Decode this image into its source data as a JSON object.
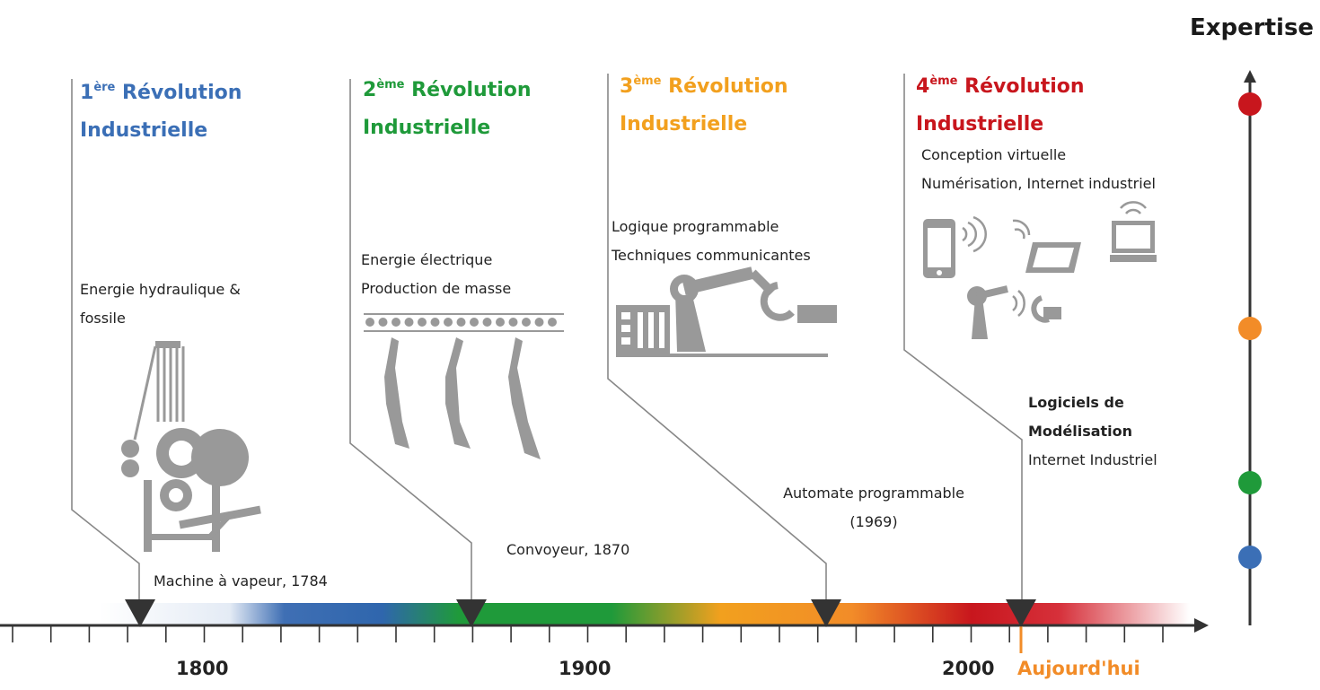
{
  "expertise_label": "Expertise",
  "revolutions": [
    {
      "ordinal": "1",
      "suffix": "ère",
      "title_word": "Révolution",
      "title_line2": "Industrielle",
      "color": "#3b6fb6",
      "description": [
        "Energie hydraulique &",
        "fossile"
      ],
      "milestone": "Machine à vapeur, 1784",
      "year": 1784,
      "icon": "steam-engine-icon"
    },
    {
      "ordinal": "2",
      "suffix": "ème",
      "title_word": "Révolution",
      "title_line2": "Industrielle",
      "color": "#1f9a3a",
      "description": [
        "Energie électrique",
        "Production de masse"
      ],
      "milestone": "Convoyeur, 1870",
      "year": 1870,
      "icon": "conveyor-icon"
    },
    {
      "ordinal": "3",
      "suffix": "ème",
      "title_word": "Révolution",
      "title_line2": "Industrielle",
      "color": "#f2a01e",
      "description": [
        "Logique programmable",
        "Techniques communicantes"
      ],
      "milestone": [
        "Automate programmable",
        "(1969)"
      ],
      "year": 1969,
      "icon": "robot-arm-icon"
    },
    {
      "ordinal": "4",
      "suffix": "ème",
      "title_word": "Révolution",
      "title_line2": "Industrielle",
      "color": "#c8161d",
      "description": [
        "Conception virtuelle",
        "Numérisation, Internet industriel"
      ],
      "milestone": [
        "Logiciels de",
        "Modélisation",
        "Internet Industriel"
      ],
      "year": 2020,
      "icon": "connected-devices-icon"
    }
  ],
  "axis": {
    "ticks": [
      "1800",
      "1900",
      "2000"
    ],
    "today_label": "Aujourd'hui",
    "today_color": "#f28c28"
  },
  "expertise_levels": [
    {
      "color": "#c8161d"
    },
    {
      "color": "#f28c28"
    },
    {
      "color": "#1f9a3a"
    },
    {
      "color": "#3b6fb6"
    }
  ]
}
